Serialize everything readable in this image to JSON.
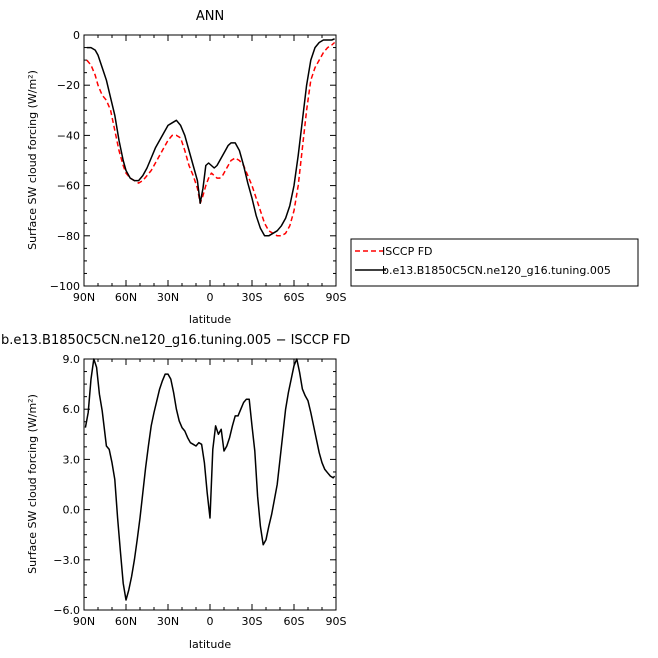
{
  "chart_data": [
    {
      "type": "line",
      "title": "ANN",
      "xlabel": "latitude",
      "ylabel": "Surface SW cloud forcing (W/m²)",
      "xlim": [
        90,
        -90
      ],
      "ylim": [
        -100,
        0
      ],
      "x_ticks": [
        {
          "value": 90,
          "label": "90N"
        },
        {
          "value": 60,
          "label": "60N"
        },
        {
          "value": 30,
          "label": "30N"
        },
        {
          "value": 0,
          "label": "0"
        },
        {
          "value": -30,
          "label": "30S"
        },
        {
          "value": -60,
          "label": "60S"
        },
        {
          "value": -90,
          "label": "90S"
        }
      ],
      "y_ticks": [
        {
          "value": 0,
          "label": "0"
        },
        {
          "value": -20,
          "label": "−20"
        },
        {
          "value": -40,
          "label": "−40"
        },
        {
          "value": -60,
          "label": "−60"
        },
        {
          "value": -80,
          "label": "−80"
        },
        {
          "value": -100,
          "label": "−100"
        }
      ],
      "legend_position": "right-bottom-outside",
      "series": [
        {
          "name": "ISCCP FD",
          "color": "#ff0000",
          "dash": true,
          "x": [
            88,
            85,
            82,
            80,
            77,
            74,
            71,
            68,
            65,
            62,
            60,
            57,
            54,
            51,
            48,
            45,
            42,
            39,
            36,
            33,
            30,
            27,
            24,
            21,
            18,
            15,
            12,
            9,
            7,
            5,
            3,
            1,
            -1,
            -3,
            -5,
            -7,
            -9,
            -11,
            -13,
            -15,
            -18,
            -21,
            -24,
            -27,
            -30,
            -33,
            -36,
            -39,
            -42,
            -45,
            -48,
            -51,
            -54,
            -57,
            -60,
            -63,
            -66,
            -69,
            -72,
            -75,
            -78,
            -81,
            -84,
            -87,
            -89
          ],
          "y": [
            -10,
            -12,
            -16,
            -20,
            -24,
            -26,
            -30,
            -38,
            -46,
            -52,
            -55,
            -57,
            -58,
            -59,
            -58,
            -56,
            -54,
            -51,
            -48,
            -45,
            -42,
            -40,
            -40,
            -41,
            -46,
            -52,
            -56,
            -61,
            -67,
            -64,
            -60,
            -57,
            -55,
            -56,
            -57,
            -57,
            -56,
            -54,
            -52,
            -50,
            -49,
            -50,
            -52,
            -56,
            -60,
            -65,
            -70,
            -75,
            -78,
            -79,
            -80,
            -80,
            -79,
            -76,
            -70,
            -60,
            -45,
            -30,
            -18,
            -13,
            -10,
            -7,
            -5,
            -4,
            -3
          ]
        },
        {
          "name": "b.e13.B1850C5CN.ne120_g16.tuning.005",
          "color": "#000000",
          "dash": false,
          "x": [
            88,
            85,
            82,
            80,
            77,
            74,
            71,
            68,
            65,
            62,
            60,
            57,
            54,
            51,
            48,
            45,
            42,
            39,
            36,
            33,
            30,
            27,
            24,
            21,
            18,
            15,
            12,
            9,
            7,
            5,
            3,
            1,
            -1,
            -3,
            -5,
            -7,
            -9,
            -11,
            -13,
            -15,
            -18,
            -21,
            -24,
            -27,
            -30,
            -33,
            -36,
            -39,
            -42,
            -45,
            -48,
            -51,
            -54,
            -57,
            -60,
            -63,
            -66,
            -69,
            -72,
            -75,
            -78,
            -81,
            -84,
            -87,
            -89
          ],
          "y": [
            -5,
            -5,
            -6,
            -8,
            -13,
            -18,
            -25,
            -32,
            -42,
            -50,
            -54,
            -57,
            -58,
            -58,
            -56,
            -53,
            -49,
            -45,
            -42,
            -39,
            -36,
            -35,
            -34,
            -36,
            -40,
            -46,
            -52,
            -58,
            -67,
            -61,
            -52,
            -51,
            -52,
            -53,
            -52,
            -50,
            -48,
            -46,
            -44,
            -43,
            -43,
            -46,
            -52,
            -59,
            -65,
            -72,
            -77,
            -80,
            -80,
            -79,
            -78,
            -76,
            -73,
            -68,
            -60,
            -48,
            -34,
            -20,
            -10,
            -5,
            -3,
            -2,
            -2,
            -2,
            -1.5
          ]
        }
      ]
    },
    {
      "type": "line",
      "title": "b.e13.B1850C5CN.ne120_g16.tuning.005 − ISCCP FD",
      "xlabel": "latitude",
      "ylabel": "Surface SW cloud forcing (W/m²)",
      "xlim": [
        90,
        -90
      ],
      "ylim": [
        -6,
        9
      ],
      "x_ticks": [
        {
          "value": 90,
          "label": "90N"
        },
        {
          "value": 60,
          "label": "60N"
        },
        {
          "value": 30,
          "label": "30N"
        },
        {
          "value": 0,
          "label": "0"
        },
        {
          "value": -30,
          "label": "30S"
        },
        {
          "value": -60,
          "label": "60S"
        },
        {
          "value": -90,
          "label": "90S"
        }
      ],
      "y_ticks": [
        {
          "value": 9,
          "label": "9.0"
        },
        {
          "value": 6,
          "label": "6.0"
        },
        {
          "value": 3,
          "label": "3.0"
        },
        {
          "value": 0,
          "label": "0.0"
        },
        {
          "value": -3,
          "label": "−3.0"
        },
        {
          "value": -6,
          "label": "−6.0"
        }
      ],
      "series": [
        {
          "color": "#000000",
          "dash": false,
          "x": [
            89,
            87,
            85,
            83,
            81,
            79,
            77,
            74,
            72,
            70,
            68,
            66,
            64,
            62,
            60,
            58,
            56,
            54,
            52,
            50,
            48,
            46,
            44,
            42,
            40,
            38,
            36,
            34,
            32,
            30,
            28,
            26,
            24,
            22,
            20,
            18,
            16,
            14,
            12,
            10,
            8,
            6,
            4,
            2,
            0,
            -2,
            -4,
            -6,
            -8,
            -10,
            -12,
            -14,
            -16,
            -18,
            -20,
            -22,
            -24,
            -26,
            -28,
            -30,
            -32,
            -34,
            -36,
            -38,
            -40,
            -42,
            -44,
            -46,
            -48,
            -50,
            -52,
            -54,
            -56,
            -58,
            -60,
            -62,
            -64,
            -66,
            -68,
            -70,
            -72,
            -74,
            -76,
            -78,
            -80,
            -82,
            -84,
            -86,
            -88,
            -89
          ],
          "y": [
            4.9,
            5.8,
            7.8,
            9.0,
            8.5,
            6.9,
            5.9,
            3.8,
            3.6,
            2.8,
            1.8,
            -0.5,
            -2.5,
            -4.4,
            -5.4,
            -4.8,
            -4.0,
            -3.0,
            -1.8,
            -0.5,
            1.0,
            2.5,
            3.8,
            5.0,
            5.8,
            6.5,
            7.2,
            7.7,
            8.1,
            8.1,
            7.8,
            7.0,
            6.0,
            5.3,
            4.9,
            4.7,
            4.3,
            4.0,
            3.9,
            3.8,
            4.0,
            3.9,
            2.8,
            1.0,
            -0.5,
            3.6,
            5.0,
            4.5,
            4.8,
            3.5,
            3.8,
            4.3,
            5.0,
            5.6,
            5.6,
            6.0,
            6.4,
            6.6,
            6.6,
            5.0,
            3.5,
            0.8,
            -1.0,
            -2.1,
            -1.8,
            -1.0,
            -0.3,
            0.6,
            1.5,
            3.0,
            4.5,
            6.0,
            7.0,
            7.8,
            8.6,
            9.0,
            8.2,
            7.2,
            6.8,
            6.5,
            5.8,
            5.0,
            4.2,
            3.4,
            2.8,
            2.4,
            2.2,
            2.0,
            1.9,
            2.0
          ]
        }
      ]
    }
  ]
}
